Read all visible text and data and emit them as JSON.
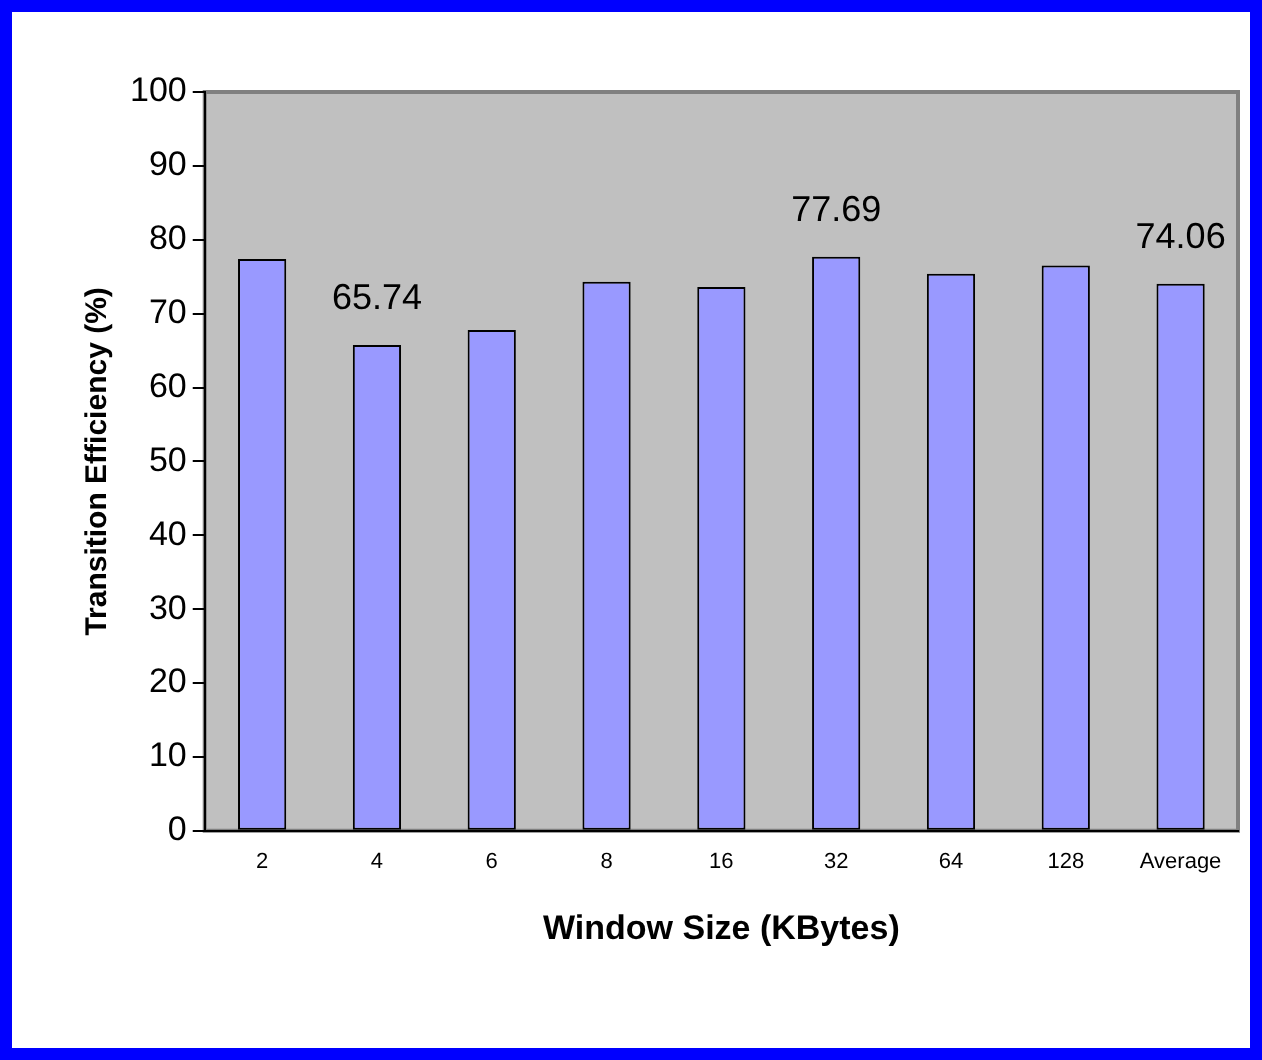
{
  "chart_data": {
    "type": "bar",
    "xlabel": "Window Size (KBytes)",
    "ylabel": "Transition Efficiency (%)",
    "categories": [
      "2",
      "4",
      "6",
      "8",
      "16",
      "32",
      "64",
      "128",
      "Average"
    ],
    "values": [
      77.4,
      65.74,
      67.8,
      74.3,
      73.6,
      77.69,
      75.4,
      76.5,
      74.06
    ],
    "value_labels": [
      null,
      "65.74",
      null,
      null,
      null,
      "77.69",
      null,
      null,
      "74.06"
    ],
    "color": "#9999ff",
    "ylim": [
      0,
      100
    ],
    "yticks": [
      0,
      10,
      20,
      30,
      40,
      50,
      60,
      70,
      80,
      90,
      100
    ],
    "grid": false,
    "legend": false
  }
}
